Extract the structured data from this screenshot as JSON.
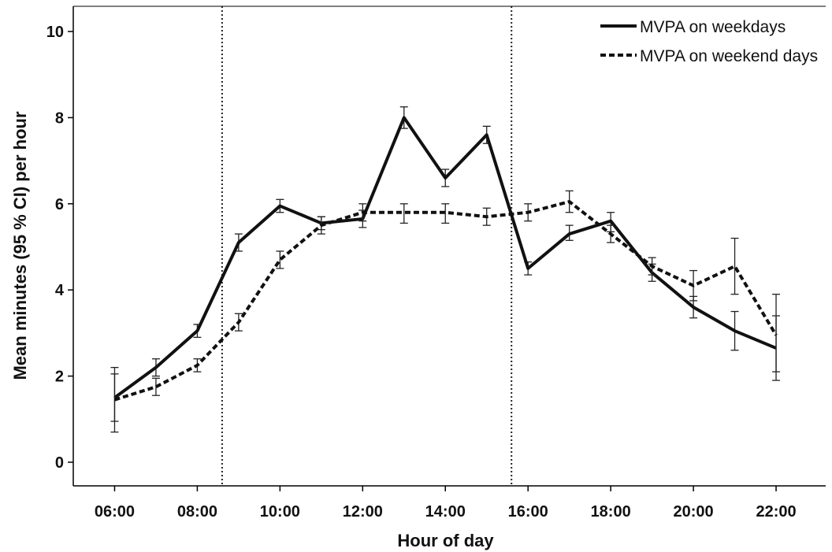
{
  "chart_data": {
    "type": "line",
    "title": "",
    "xlabel": "Hour of day",
    "ylabel": "Mean minutes (95 % CI) per hour",
    "ylim": [
      0,
      10
    ],
    "yticks": [
      "0",
      "2",
      "4",
      "6",
      "8",
      "10"
    ],
    "xlim": [
      5.0,
      23.2
    ],
    "xticks": [
      {
        "x": 6,
        "label": "06:00"
      },
      {
        "x": 8,
        "label": "08:00"
      },
      {
        "x": 10,
        "label": "10:00"
      },
      {
        "x": 12,
        "label": "12:00"
      },
      {
        "x": 14,
        "label": "14:00"
      },
      {
        "x": 16,
        "label": "16:00"
      },
      {
        "x": 18,
        "label": "18:00"
      },
      {
        "x": 20,
        "label": "20:00"
      },
      {
        "x": 22,
        "label": "22:00"
      }
    ],
    "grid": false,
    "legend_position": "top-right",
    "reference_lines_x": [
      8.6,
      15.6
    ],
    "x": [
      6,
      7,
      8,
      9,
      10,
      11,
      12,
      13,
      14,
      15,
      16,
      17,
      18,
      19,
      20,
      21,
      22
    ],
    "series": [
      {
        "name": "MVPA on weekdays",
        "style": "solid",
        "values": [
          1.5,
          2.2,
          3.05,
          5.1,
          5.95,
          5.55,
          5.65,
          8.0,
          6.6,
          7.6,
          4.5,
          5.3,
          5.6,
          4.4,
          3.6,
          3.05,
          2.65
        ],
        "ci_low": [
          0.95,
          2.0,
          2.9,
          4.9,
          5.8,
          5.4,
          5.45,
          7.75,
          6.4,
          7.4,
          4.35,
          5.15,
          5.35,
          4.2,
          3.35,
          2.6,
          1.9
        ],
        "ci_high": [
          2.05,
          2.4,
          3.2,
          5.3,
          6.1,
          5.7,
          5.85,
          8.25,
          6.8,
          7.8,
          4.65,
          5.5,
          5.8,
          4.6,
          3.85,
          3.5,
          3.4
        ]
      },
      {
        "name": "MVPA on weekend days",
        "style": "dashed",
        "values": [
          1.45,
          1.75,
          2.25,
          3.25,
          4.7,
          5.5,
          5.8,
          5.8,
          5.8,
          5.7,
          5.8,
          6.05,
          5.3,
          4.55,
          4.1,
          4.55,
          2.95
        ],
        "ci_low": [
          0.7,
          1.55,
          2.1,
          3.05,
          4.5,
          5.3,
          5.6,
          5.55,
          5.55,
          5.5,
          5.6,
          5.8,
          5.1,
          4.35,
          3.75,
          3.9,
          2.1
        ],
        "ci_high": [
          2.2,
          1.95,
          2.4,
          3.45,
          4.9,
          5.7,
          6.0,
          6.0,
          6.0,
          5.9,
          6.0,
          6.3,
          5.5,
          4.75,
          4.45,
          5.2,
          3.9
        ]
      }
    ]
  }
}
